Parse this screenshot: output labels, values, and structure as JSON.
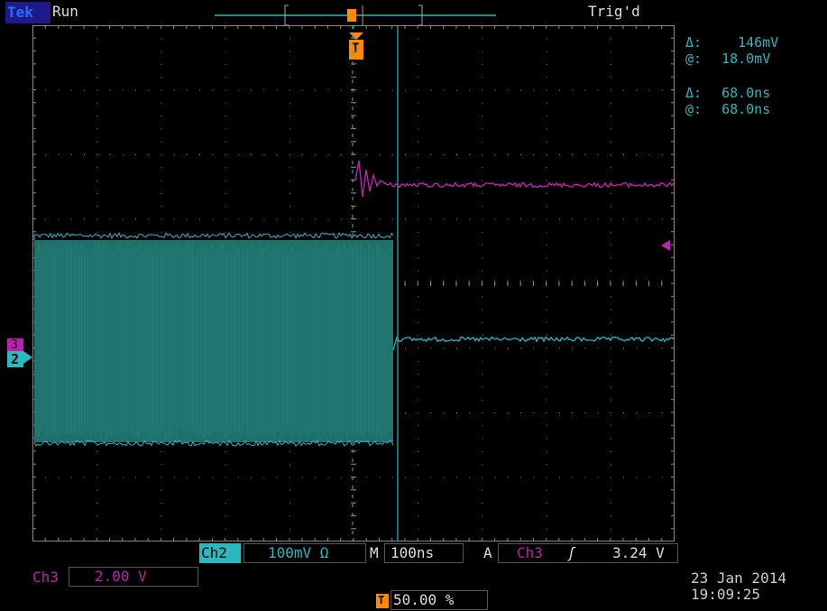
{
  "header": {
    "logo": "Tek",
    "run_state": "Run",
    "trig_state": "Trig'd"
  },
  "cursor_readouts": [
    {
      "symbol": "Δ:",
      "value": "146mV"
    },
    {
      "symbol": "@:",
      "value": "18.0mV"
    },
    {
      "symbol": "Δ:",
      "value": "68.0ns"
    },
    {
      "symbol": "@:",
      "value": "68.0ns"
    }
  ],
  "channel_markers": {
    "ch3": "3",
    "ch2": "2"
  },
  "bottom": {
    "ch2_label": "Ch2",
    "ch2_scale": "100mV Ω",
    "m_label": "M",
    "timebase": "100ns",
    "a_label": "A",
    "trig_source": "Ch3",
    "trig_slope": "ʃ",
    "trig_level": "3.24 V",
    "ch3_label": "Ch3",
    "ch3_scale": "2.00 V",
    "trig_marker": "T",
    "trig_position": "50.00 %",
    "date": "23 Jan  2014",
    "time": "19:09:25"
  },
  "colors": {
    "ch2": "#2bb8c0",
    "ch3": "#c020b0",
    "trigger": "#ff8a00",
    "grid": "#8a8a8a"
  }
}
